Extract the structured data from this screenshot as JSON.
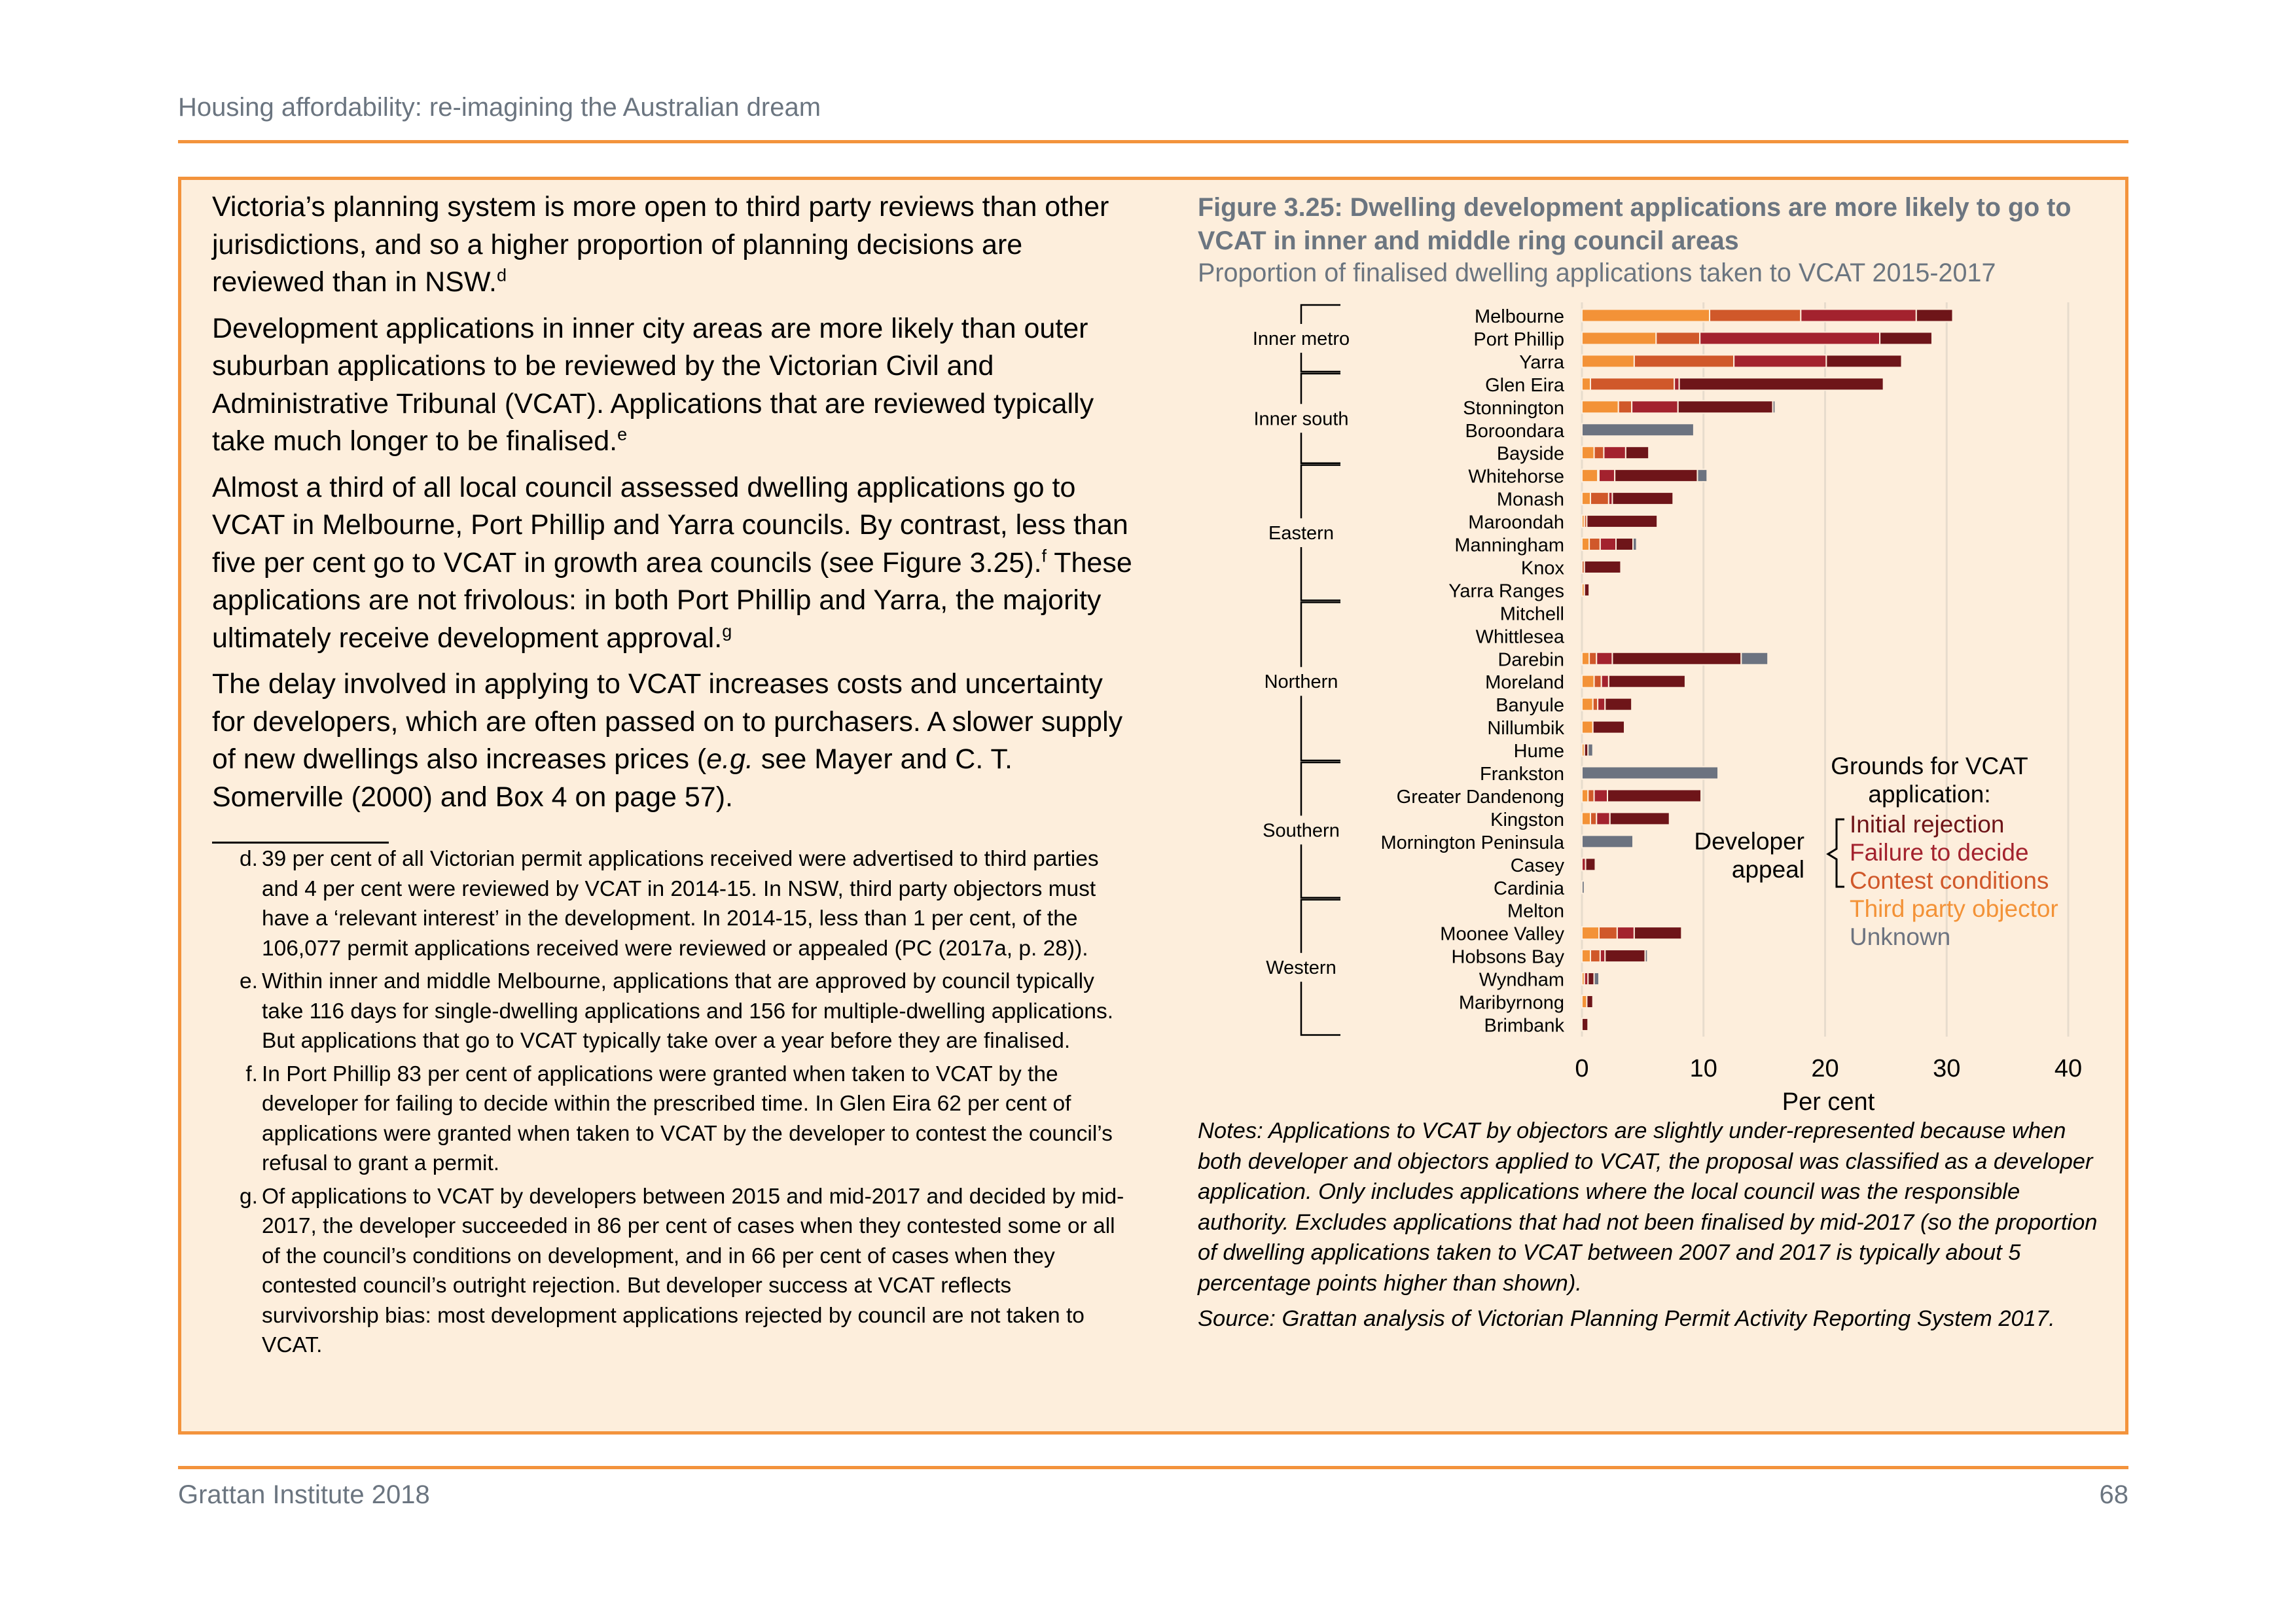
{
  "header": {
    "title": "Housing affordability: re-imagining the Australian dream"
  },
  "body": {
    "p1": {
      "text": "Victoria’s planning system is more open to third party reviews than other jurisdictions, and so a higher proportion of planning decisions are reviewed than in NSW.",
      "ref": "d"
    },
    "p2": {
      "text": "Development applications in inner city areas are more likely than outer suburban applications to be reviewed by the Victorian Civil and Administrative Tribunal (VCAT). Applications that are reviewed typically take much longer to be finalised.",
      "ref": "e"
    },
    "p3": {
      "a": "Almost a third of all local council assessed dwelling applications go to VCAT in Melbourne, Port Phillip and Yarra councils. By contrast, less than five per cent go to VCAT in growth area councils (see Figure 3.25).",
      "ref1": "f",
      "b": " These applications are not frivolous: in both Port Phillip and Yarra, the majority ultimately receive development approval.",
      "ref2": "g"
    },
    "p4": {
      "a": "The delay involved in applying to VCAT increases costs and uncertainty for developers, which are often passed on to purchasers. A slower supply of new dwellings also increases prices (",
      "eg": "e.g.",
      "b": " see Mayer and C. T. Somerville (2000) and Box 4 on page 57)."
    }
  },
  "footnotes": [
    {
      "label": "d.",
      "text": "39 per cent of all Victorian permit applications received were advertised to third parties and 4 per cent were reviewed by VCAT in 2014-15. In NSW, third party objectors must have a ‘relevant interest’ in the development. In 2014-15, less than 1 per cent, of the 106,077 permit applications received were reviewed or appealed (PC (2017a, p. 28))."
    },
    {
      "label": "e.",
      "text": "Within inner and middle Melbourne, applications that are approved by council typically take 116 days for single-dwelling applications and 156 for multiple-dwelling applications. But applications that go to VCAT typically take over a year before they are finalised."
    },
    {
      "label": "f.",
      "text": "In Port Phillip 83 per cent of applications were granted when taken to VCAT by the developer for failing to decide within the prescribed time. In Glen Eira 62 per cent of applications were granted when taken to VCAT by the developer to contest the council’s refusal to grant a permit."
    },
    {
      "label": "g.",
      "text": "Of applications to VCAT by developers between 2015 and mid-2017 and decided by mid-2017, the developer succeeded in 86 per cent of cases when they contested some or all of the council’s conditions on development, and in 66 per cent of cases when they contested council’s outright rejection. But developer success at VCAT reflects survivorship bias: most development applications rejected by council are not taken to VCAT."
    }
  ],
  "figure": {
    "title": "Figure 3.25: Dwelling development applications are more likely to go to VCAT in inner and middle ring council areas",
    "subtitle": "Proportion of finalised dwelling applications taken to VCAT 2015-2017",
    "notes": "Notes: Applications to VCAT by objectors are slightly under-represented because when both developer and objectors applied to VCAT, the proposal was classified as a developer application. Only includes applications where the local council was the responsible authority. Excludes applications that had not been finalised by mid-2017 (so the proportion of dwelling applications taken to VCAT between 2007 and 2017 is typically about 5 percentage points higher than shown).",
    "source": "Source: Grattan analysis of Victorian Planning Permit Activity Reporting System 2017."
  },
  "chart_data": {
    "type": "bar",
    "orientation": "horizontal",
    "stacked": true,
    "xlabel": "Per cent",
    "xlim": [
      0,
      40
    ],
    "xticks": [
      0,
      10,
      20,
      30,
      40
    ],
    "grid": true,
    "categories": [
      "Melbourne",
      "Port Phillip",
      "Yarra",
      "Glen Eira",
      "Stonnington",
      "Boroondara",
      "Bayside",
      "Whitehorse",
      "Monash",
      "Maroondah",
      "Manningham",
      "Knox",
      "Yarra Ranges",
      "Mitchell",
      "Whittlesea",
      "Darebin",
      "Moreland",
      "Banyule",
      "Nillumbik",
      "Hume",
      "Frankston",
      "Greater Dandenong",
      "Kingston",
      "Mornington Peninsula",
      "Casey",
      "Cardinia",
      "Melton",
      "Moonee Valley",
      "Hobsons Bay",
      "Wyndham",
      "Maribyrnong",
      "Brimbank"
    ],
    "groups": [
      {
        "name": "Inner metro",
        "from": 0,
        "to": 2
      },
      {
        "name": "Inner south",
        "from": 3,
        "to": 6
      },
      {
        "name": "Eastern",
        "from": 7,
        "to": 12
      },
      {
        "name": "Northern",
        "from": 13,
        "to": 19
      },
      {
        "name": "Southern",
        "from": 20,
        "to": 25
      },
      {
        "name": "Western",
        "from": 26,
        "to": 31
      }
    ],
    "series": [
      {
        "name": "Third party objector",
        "color": "#f39237",
        "values": [
          10.5,
          6.1,
          4.3,
          0.7,
          3.0,
          0,
          1.0,
          1.3,
          0.7,
          0.2,
          0.6,
          0,
          0.2,
          0,
          0,
          0.6,
          1.0,
          0.9,
          0.9,
          0.2,
          0,
          0.5,
          0.7,
          0,
          0,
          0,
          0,
          1.4,
          0.7,
          0.2,
          0.4,
          0
        ]
      },
      {
        "name": "Contest conditions",
        "color": "#d0582a",
        "values": [
          7.5,
          3.6,
          8.2,
          6.9,
          1.1,
          0,
          0.8,
          0.1,
          1.5,
          0.2,
          0.9,
          0.2,
          0,
          0,
          0,
          0.6,
          0.6,
          0.4,
          0,
          0,
          0,
          0.5,
          0.5,
          0,
          0,
          0,
          0,
          1.5,
          0.8,
          0,
          0,
          0
        ]
      },
      {
        "name": "Failure to decide",
        "color": "#a3222e",
        "values": [
          9.5,
          14.8,
          7.6,
          0.4,
          3.8,
          0,
          1.8,
          1.3,
          0.3,
          0,
          1.3,
          0,
          0,
          0,
          0,
          1.3,
          0.6,
          0.6,
          0,
          0,
          0,
          1.1,
          1.1,
          0,
          0.3,
          0,
          0,
          1.4,
          0.4,
          0.3,
          0,
          0
        ]
      },
      {
        "name": "Initial rejection",
        "color": "#6e1519",
        "values": [
          3.0,
          4.3,
          6.2,
          16.8,
          7.8,
          0,
          1.9,
          6.8,
          5.0,
          5.8,
          1.4,
          3.0,
          0.4,
          0,
          0,
          10.6,
          6.3,
          2.2,
          2.6,
          0.3,
          0,
          7.7,
          4.9,
          0,
          0.8,
          0,
          0,
          3.9,
          3.3,
          0.5,
          0.5,
          0.5
        ]
      },
      {
        "name": "Unknown",
        "color": "#6c7380",
        "values": [
          0,
          0,
          0,
          0,
          0.2,
          9.2,
          0,
          0.8,
          0,
          0,
          0.3,
          0,
          0,
          0,
          0,
          2.2,
          0,
          0,
          0,
          0.4,
          11.2,
          0,
          0,
          4.2,
          0,
          0.2,
          0,
          0,
          0.2,
          0.4,
          0,
          0
        ]
      }
    ],
    "legend": {
      "title": "Grounds for VCAT application:",
      "bracket_label": "Developer appeal",
      "items": [
        {
          "label": "Initial rejection",
          "color": "#6e1519"
        },
        {
          "label": "Failure to decide",
          "color": "#a3222e"
        },
        {
          "label": "Contest conditions",
          "color": "#d0582a"
        },
        {
          "label": "Third party objector",
          "color": "#f39237"
        },
        {
          "label": "Unknown",
          "color": "#6c7380"
        }
      ]
    }
  },
  "footer": {
    "left": "Grattan Institute 2018",
    "page": "68"
  },
  "colors": {
    "accent": "#f3933c",
    "box_background": "#fdeedc",
    "heading_gray": "#6b7580"
  }
}
